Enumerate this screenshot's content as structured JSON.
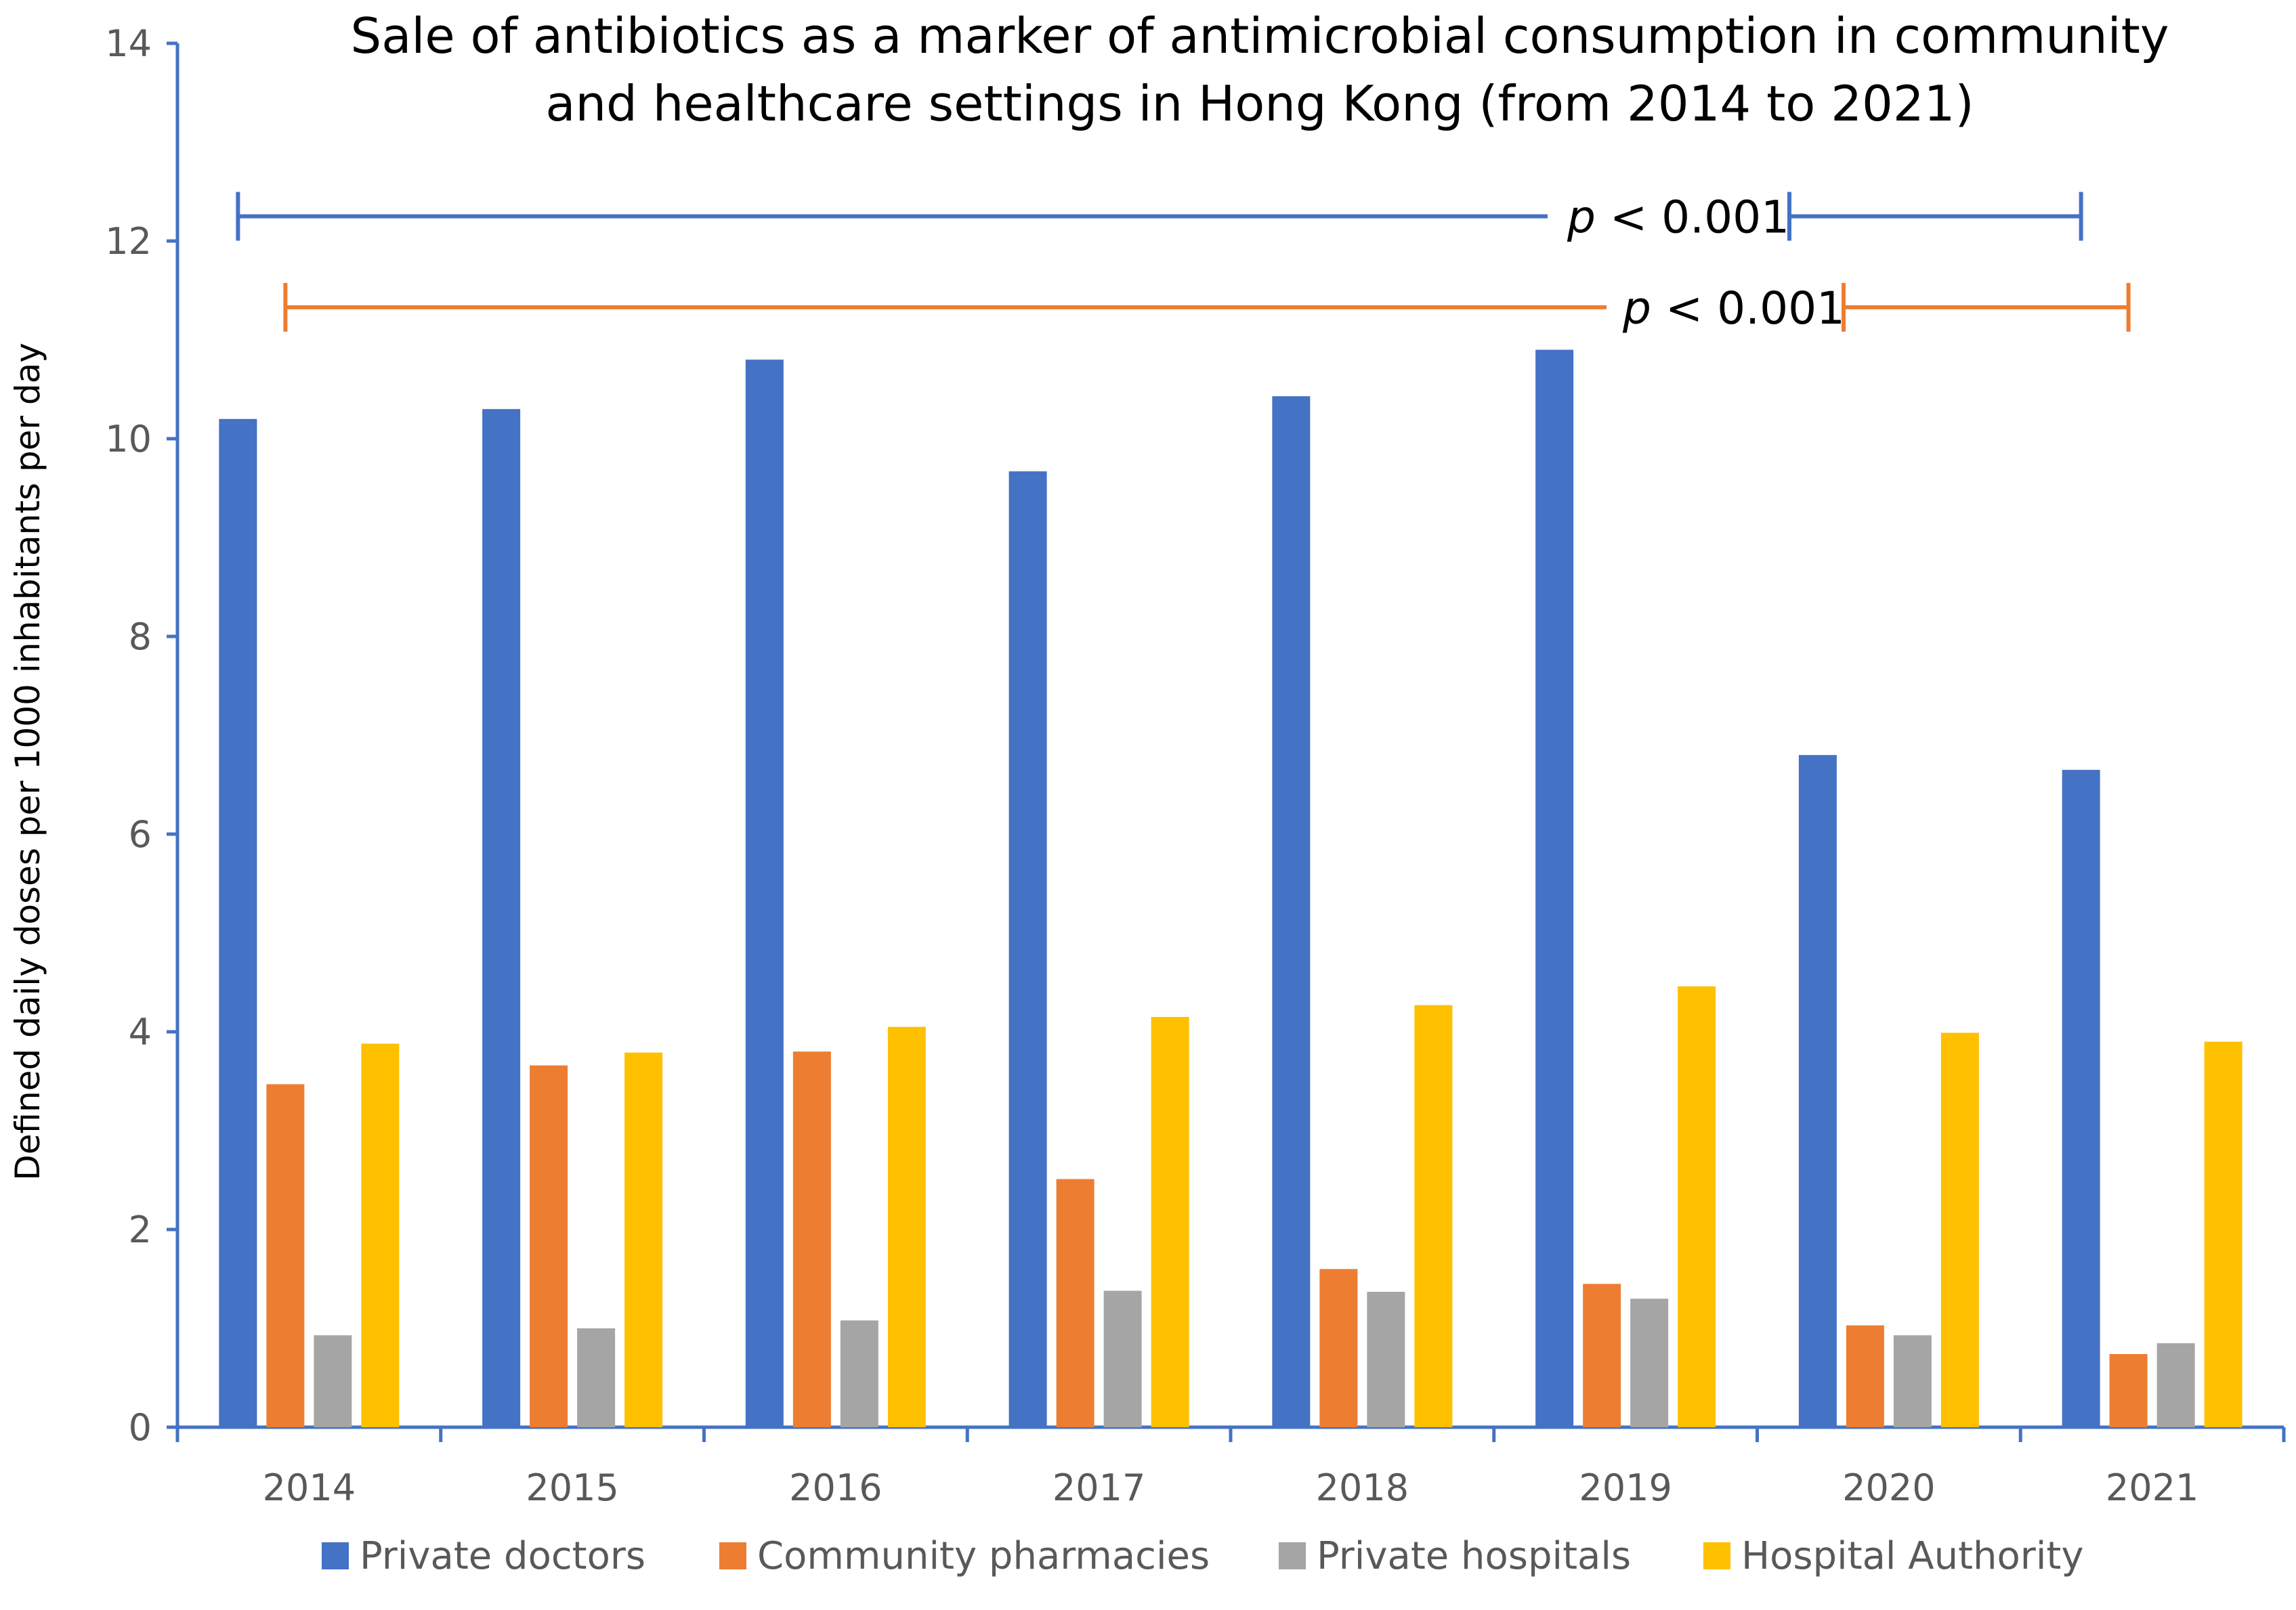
{
  "chart_data": {
    "type": "bar",
    "title": "Sale of antibiotics as a marker of antimicrobial consumption in community",
    "subtitle": "and healthcare settings in Hong Kong (from 2014 to 2021)",
    "xlabel": "",
    "ylabel": "Defined daily doses per 1000 inhabitants per day",
    "ylim": [
      0,
      14
    ],
    "yticks": [
      "0",
      "2",
      "4",
      "6",
      "8",
      "10",
      "12",
      "14"
    ],
    "categories": [
      "2014",
      "2015",
      "2016",
      "2017",
      "2018",
      "2019",
      "2020",
      "2021"
    ],
    "series": [
      {
        "name": "Private doctors",
        "color": "#4472C4",
        "values": [
          10.2,
          10.3,
          10.8,
          9.67,
          10.43,
          10.9,
          6.8,
          6.65
        ]
      },
      {
        "name": "Community pharmacies",
        "color": "#ED7D31",
        "values": [
          3.47,
          3.66,
          3.8,
          2.51,
          1.6,
          1.45,
          1.03,
          0.74
        ]
      },
      {
        "name": "Private hospitals",
        "color": "#A5A5A5",
        "values": [
          0.93,
          1.0,
          1.08,
          1.38,
          1.37,
          1.3,
          0.93,
          0.85
        ]
      },
      {
        "name": "Hospital Authority",
        "color": "#FFC000",
        "values": [
          3.88,
          3.79,
          4.05,
          4.15,
          4.27,
          4.46,
          3.99,
          3.9
        ]
      }
    ],
    "grid": false,
    "legend_position": "bottom",
    "annotations": [
      {
        "series": "Private doctors",
        "p_symbol": "p",
        "text": " < 0.001",
        "color": "#4472C4",
        "from_category": "2014",
        "to_category": "2021",
        "y_value": 12.25
      },
      {
        "series": "Community pharmacies",
        "p_symbol": "p",
        "text": " < 0.001",
        "color": "#ED7D31",
        "from_category": "2014",
        "to_category": "2021",
        "y_value": 11.33
      }
    ],
    "axis_color": "#4472C4"
  }
}
